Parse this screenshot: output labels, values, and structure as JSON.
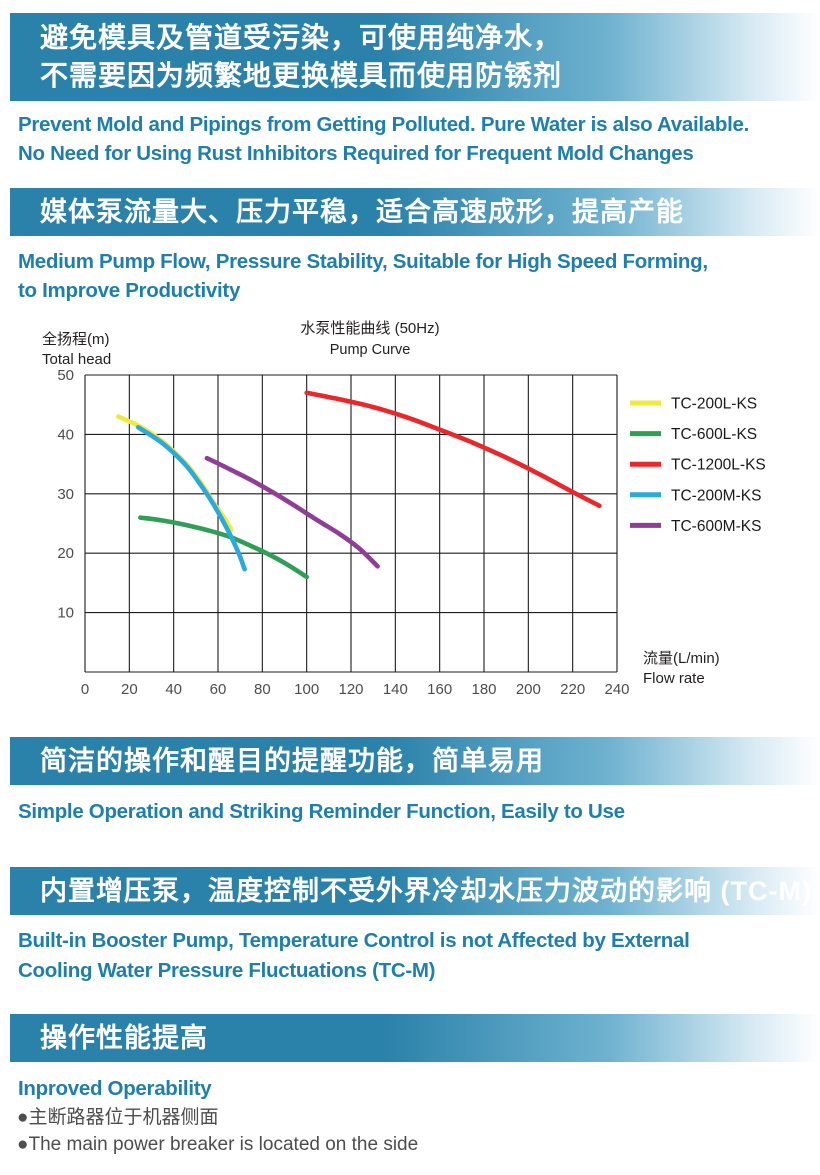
{
  "colors": {
    "banner_blue": "#2a81a9",
    "heading_blue": "#1e7fad",
    "body_text": "#4d4d4d",
    "grid_black": "#1d1d1b"
  },
  "section1": {
    "banner_line1": "避免模具及管道受污染，可使用纯净水，",
    "banner_line2": "不需要因为频繁地更换模具而使用防锈剂",
    "heading_line1": "Prevent Mold and Pipings from Getting Polluted. Pure Water is also Available.",
    "heading_line2": "No Need for Using Rust Inhibitors Required for Frequent Mold Changes"
  },
  "section2": {
    "banner": "媒体泵流量大、压力平稳，适合高速成形，提高产能",
    "heading_line1": "Medium Pump Flow, Pressure Stability, Suitable for High Speed Forming,",
    "heading_line2": "to Improve Productivity"
  },
  "section3": {
    "banner": "简洁的操作和醒目的提醒功能，简单易用",
    "heading": "Simple Operation and Striking Reminder Function, Easily to Use"
  },
  "section4": {
    "banner": "内置增压泵，温度控制不受外界冷却水压力波动的影响 (TC-M)",
    "heading_line1": "Built-in Booster Pump, Temperature Control is not Affected by External",
    "heading_line2": "Cooling Water Pressure Fluctuations (TC-M)"
  },
  "section5": {
    "banner": "操作性能提高",
    "heading": "Inproved Operability",
    "bullet_cn": "●主断路器位于机器侧面",
    "bullet_en": "●The main power breaker is located on the side"
  },
  "chart_data": {
    "type": "line",
    "title_cn": "水泵性能曲线 (50Hz)",
    "title_en": "Pump Curve",
    "y_axis_label_cn": "全扬程(m)",
    "y_axis_label_en": "Total head",
    "x_axis_label_cn": "流量(L/min)",
    "x_axis_label_en": "Flow rate",
    "xlim": [
      0,
      240
    ],
    "ylim": [
      0,
      50
    ],
    "x_ticks": [
      0,
      20,
      40,
      60,
      80,
      100,
      120,
      140,
      160,
      180,
      200,
      220,
      240
    ],
    "y_tick_labels": [
      10,
      20,
      30,
      40,
      50
    ],
    "y_gridlines": [
      0,
      10,
      20,
      30,
      40,
      50
    ],
    "grid": true,
    "legend_position": "right",
    "series": [
      {
        "name": "TC-200L-KS",
        "color": "#f2e93f",
        "points": [
          [
            15,
            43
          ],
          [
            25,
            41.3
          ],
          [
            35,
            38.8
          ],
          [
            45,
            35.3
          ],
          [
            52,
            32
          ],
          [
            58,
            28.5
          ],
          [
            63,
            25.8
          ],
          [
            66,
            24
          ]
        ]
      },
      {
        "name": "TC-600L-KS",
        "color": "#2f9e56",
        "points": [
          [
            25,
            26
          ],
          [
            35,
            25.5
          ],
          [
            45,
            24.8
          ],
          [
            55,
            23.9
          ],
          [
            65,
            22.8
          ],
          [
            75,
            21.2
          ],
          [
            85,
            19.4
          ],
          [
            93,
            17.7
          ],
          [
            100,
            16
          ]
        ]
      },
      {
        "name": "TC-1200L-KS",
        "color": "#e8282b",
        "points": [
          [
            100,
            47
          ],
          [
            115,
            45.9
          ],
          [
            130,
            44.6
          ],
          [
            145,
            42.9
          ],
          [
            160,
            40.8
          ],
          [
            175,
            38.6
          ],
          [
            190,
            36.1
          ],
          [
            205,
            33.3
          ],
          [
            220,
            30.3
          ],
          [
            232,
            28
          ]
        ]
      },
      {
        "name": "TC-200M-KS",
        "color": "#2aa9de",
        "points": [
          [
            24,
            41.2
          ],
          [
            35,
            38.5
          ],
          [
            45,
            35
          ],
          [
            52,
            31.6
          ],
          [
            58,
            28.2
          ],
          [
            64,
            24.2
          ],
          [
            69,
            20.3
          ],
          [
            72,
            17.3
          ]
        ]
      },
      {
        "name": "TC-600M-KS",
        "color": "#8f3d96",
        "points": [
          [
            55,
            36
          ],
          [
            65,
            34.2
          ],
          [
            75,
            32.3
          ],
          [
            85,
            30.2
          ],
          [
            95,
            27.9
          ],
          [
            105,
            25.5
          ],
          [
            115,
            23.2
          ],
          [
            124,
            20.7
          ],
          [
            132,
            17.8
          ]
        ]
      }
    ]
  }
}
